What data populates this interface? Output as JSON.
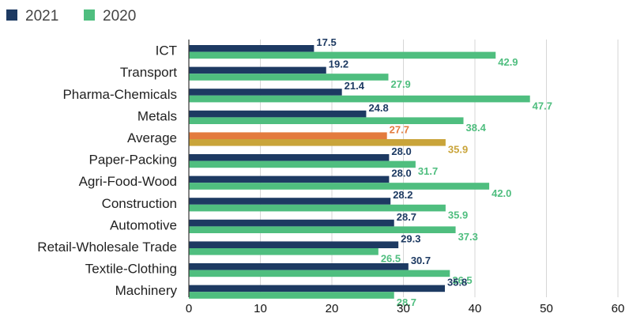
{
  "chart_data": {
    "type": "bar",
    "orientation": "horizontal",
    "categories": [
      "ICT",
      "Transport",
      "Pharma-Chemicals",
      "Metals",
      "Average",
      "Paper-Packing",
      "Agri-Food-Wood",
      "Construction",
      "Automotive",
      "Retail-Wholesale Trade",
      "Textile-Clothing",
      "Machinery"
    ],
    "series": [
      {
        "name": "2021",
        "color": "#1d3a62",
        "values": [
          17.5,
          19.2,
          21.4,
          24.8,
          27.7,
          28.0,
          28.0,
          28.2,
          28.7,
          29.3,
          30.7,
          35.8
        ]
      },
      {
        "name": "2020",
        "color": "#4fbe7f",
        "values": [
          42.9,
          27.9,
          47.7,
          38.4,
          35.9,
          31.7,
          42.0,
          35.9,
          37.3,
          26.5,
          36.5,
          28.7
        ]
      }
    ],
    "highlight": {
      "category": "Average",
      "colors": [
        "#e37b3e",
        "#c9a43a"
      ]
    },
    "xlim": [
      0,
      60
    ],
    "xticks": [
      0,
      10,
      20,
      30,
      40,
      50,
      60
    ],
    "legend_position": "top-left",
    "grid": true
  }
}
